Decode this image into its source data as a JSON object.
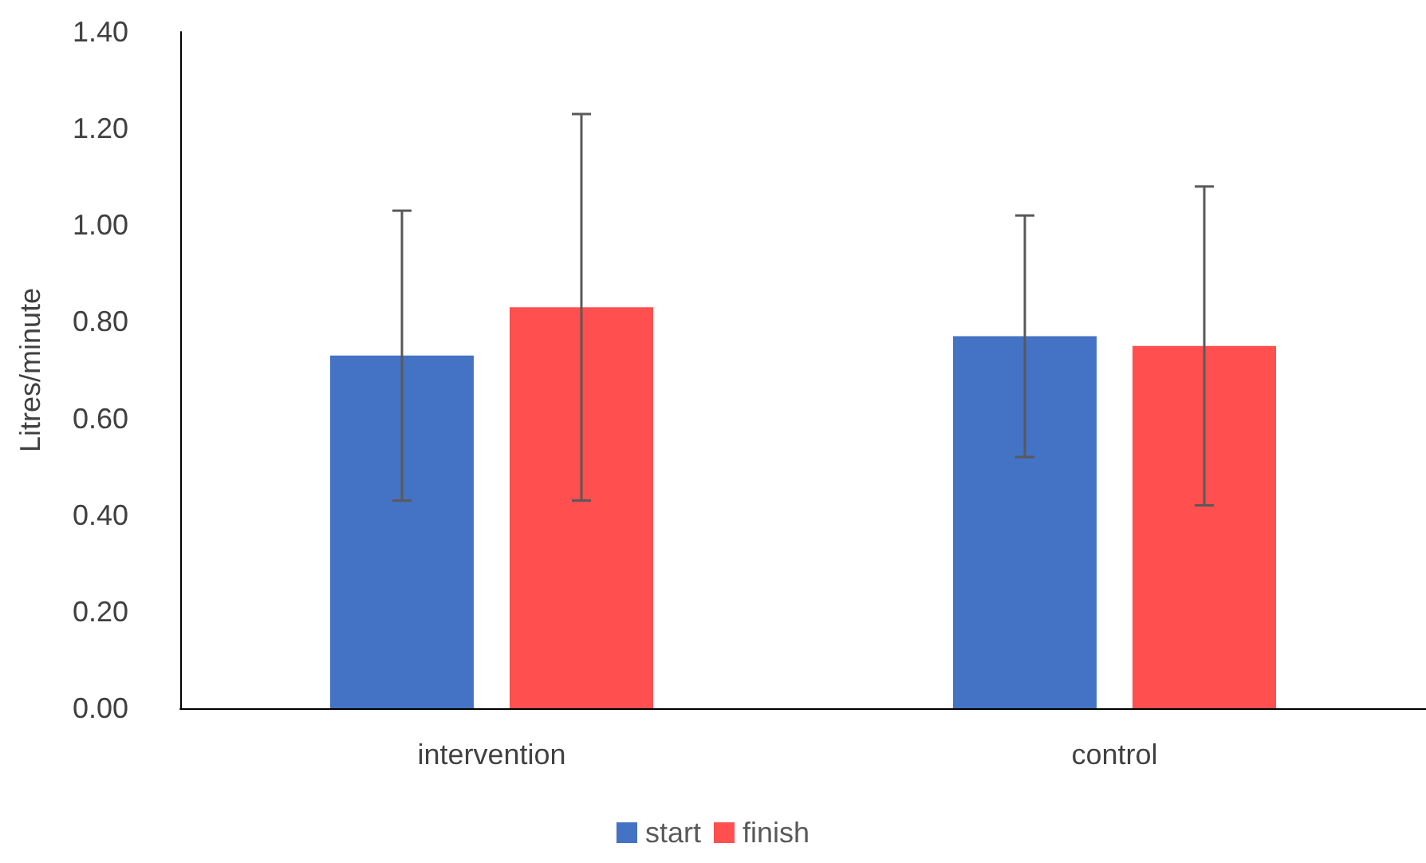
{
  "chart_data": {
    "type": "bar",
    "ylabel": "Litres/minute",
    "categories": [
      "intervention",
      "control"
    ],
    "series": [
      {
        "name": "start",
        "color": "#4472c4",
        "values": [
          0.73,
          0.77
        ],
        "errors": [
          0.3,
          0.25
        ]
      },
      {
        "name": "finish",
        "color": "#ff4f4f",
        "values": [
          0.83,
          0.75
        ],
        "errors": [
          0.4,
          0.33
        ]
      }
    ],
    "ylim": [
      0,
      1.4
    ],
    "yticks": [
      {
        "value": 0,
        "label": "0.00"
      },
      {
        "value": 0.2,
        "label": "0.20"
      },
      {
        "value": 0.4,
        "label": "0.40"
      },
      {
        "value": 0.6,
        "label": "0.60"
      },
      {
        "value": 0.8,
        "label": "0.80"
      },
      {
        "value": 1.0,
        "label": "1.00"
      },
      {
        "value": 1.2,
        "label": "1.20"
      },
      {
        "value": 1.4,
        "label": "1.40"
      }
    ],
    "grid": false,
    "legend": "bottom"
  }
}
